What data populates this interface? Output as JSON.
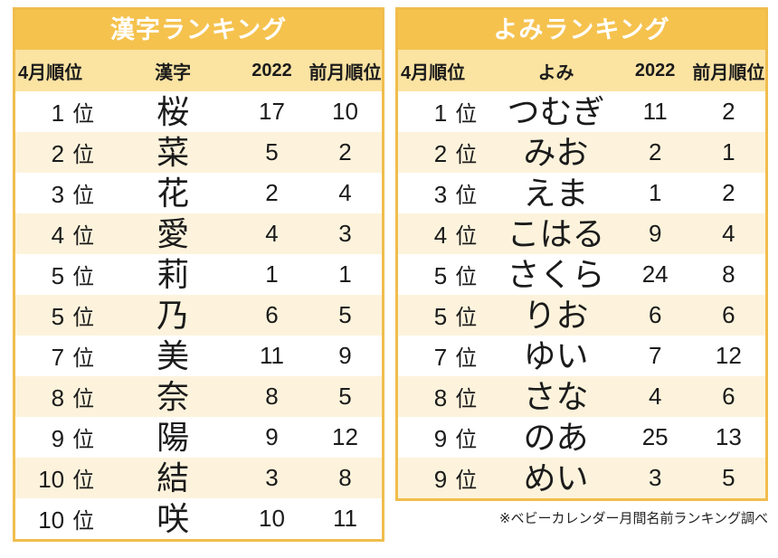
{
  "labels": {
    "rank_suffix": "位"
  },
  "colors": {
    "title_bg": "#f5c24e",
    "title_text": "#ffffff",
    "border": "#f0bd4d",
    "header_bg": "#fbe3a2",
    "stripe_bg": "#fdf3dc",
    "body_text": "#1b1b1b",
    "footnote_text": "#222222"
  },
  "chart_data": {
    "type": "table",
    "footnote": "※ベビーカレンダー月間名前ランキング調べ",
    "tables": [
      {
        "title": "漢字ランキング",
        "columns": [
          "4月順位",
          "漢字",
          "2022",
          "前月順位"
        ],
        "rows": [
          {
            "rank": 1,
            "name": "桜",
            "count_2022": 17,
            "prev_month_rank": 10
          },
          {
            "rank": 2,
            "name": "菜",
            "count_2022": 5,
            "prev_month_rank": 2
          },
          {
            "rank": 3,
            "name": "花",
            "count_2022": 2,
            "prev_month_rank": 4
          },
          {
            "rank": 4,
            "name": "愛",
            "count_2022": 4,
            "prev_month_rank": 3
          },
          {
            "rank": 5,
            "name": "莉",
            "count_2022": 1,
            "prev_month_rank": 1
          },
          {
            "rank": 5,
            "name": "乃",
            "count_2022": 6,
            "prev_month_rank": 5
          },
          {
            "rank": 7,
            "name": "美",
            "count_2022": 11,
            "prev_month_rank": 9
          },
          {
            "rank": 8,
            "name": "奈",
            "count_2022": 8,
            "prev_month_rank": 5
          },
          {
            "rank": 9,
            "name": "陽",
            "count_2022": 9,
            "prev_month_rank": 12
          },
          {
            "rank": 10,
            "name": "結",
            "count_2022": 3,
            "prev_month_rank": 8
          },
          {
            "rank": 10,
            "name": "咲",
            "count_2022": 10,
            "prev_month_rank": 11
          }
        ]
      },
      {
        "title": "よみランキング",
        "columns": [
          "4月順位",
          "よみ",
          "2022",
          "前月順位"
        ],
        "rows": [
          {
            "rank": 1,
            "name": "つむぎ",
            "count_2022": 11,
            "prev_month_rank": 2
          },
          {
            "rank": 2,
            "name": "みお",
            "count_2022": 2,
            "prev_month_rank": 1
          },
          {
            "rank": 3,
            "name": "えま",
            "count_2022": 1,
            "prev_month_rank": 2
          },
          {
            "rank": 4,
            "name": "こはる",
            "count_2022": 9,
            "prev_month_rank": 4
          },
          {
            "rank": 5,
            "name": "さくら",
            "count_2022": 24,
            "prev_month_rank": 8
          },
          {
            "rank": 5,
            "name": "りお",
            "count_2022": 6,
            "prev_month_rank": 6
          },
          {
            "rank": 7,
            "name": "ゆい",
            "count_2022": 7,
            "prev_month_rank": 12
          },
          {
            "rank": 8,
            "name": "さな",
            "count_2022": 4,
            "prev_month_rank": 6
          },
          {
            "rank": 9,
            "name": "のあ",
            "count_2022": 25,
            "prev_month_rank": 13
          },
          {
            "rank": 9,
            "name": "めい",
            "count_2022": 3,
            "prev_month_rank": 5
          }
        ]
      }
    ]
  }
}
